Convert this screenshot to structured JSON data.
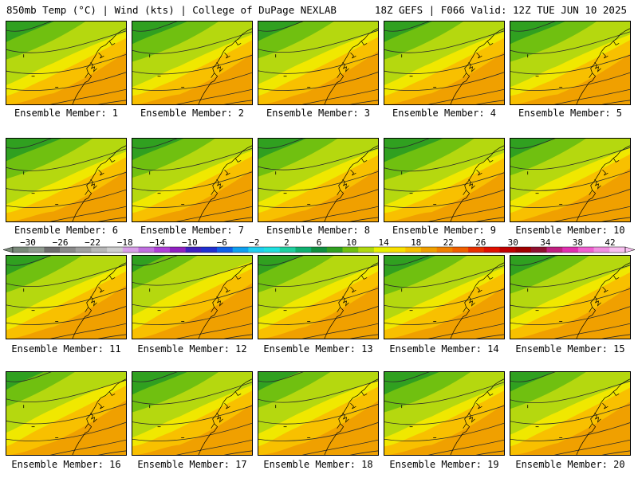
{
  "header": {
    "left": "850mb Temp (°C) | Wind (kts) | College of DuPage NEXLAB",
    "right": "18Z GEFS | F066 Valid: 12Z TUE JUN 10 2025"
  },
  "members": [
    {
      "label": "Ensemble Member: 1",
      "shade": 0.45
    },
    {
      "label": "Ensemble Member: 2",
      "shade": 0.55
    },
    {
      "label": "Ensemble Member: 3",
      "shade": 0.4
    },
    {
      "label": "Ensemble Member: 4",
      "shade": 0.45
    },
    {
      "label": "Ensemble Member: 5",
      "shade": 0.55
    },
    {
      "label": "Ensemble Member: 6",
      "shade": 0.55
    },
    {
      "label": "Ensemble Member: 7",
      "shade": 0.5
    },
    {
      "label": "Ensemble Member: 8",
      "shade": 0.45
    },
    {
      "label": "Ensemble Member: 9",
      "shade": 0.6
    },
    {
      "label": "Ensemble Member: 10",
      "shade": 0.4
    },
    {
      "label": "Ensemble Member: 11",
      "shade": 0.4
    },
    {
      "label": "Ensemble Member: 12",
      "shade": 0.25
    },
    {
      "label": "Ensemble Member: 13",
      "shade": 0.4
    },
    {
      "label": "Ensemble Member: 14",
      "shade": 0.5
    },
    {
      "label": "Ensemble Member: 15",
      "shade": 0.45
    },
    {
      "label": "Ensemble Member: 16",
      "shade": 0.3
    },
    {
      "label": "Ensemble Member: 17",
      "shade": 0.55
    },
    {
      "label": "Ensemble Member: 18",
      "shade": 0.35
    },
    {
      "label": "Ensemble Member: 19",
      "shade": 0.55
    },
    {
      "label": "Ensemble Member: 20",
      "shade": 0.4
    }
  ],
  "colorbar": {
    "ticks": [
      "−30",
      "−26",
      "−22",
      "−18",
      "−14",
      "−10",
      "−6",
      "−2",
      "2",
      "6",
      "10",
      "14",
      "18",
      "22",
      "26",
      "30",
      "34",
      "38",
      "42"
    ],
    "colors": [
      "#7a8a7a",
      "#8f9a8f",
      "#6e6e6e",
      "#8a8a8a",
      "#a0a0a0",
      "#b8b8b8",
      "#cfcfcf",
      "#d8a0e8",
      "#c070e0",
      "#b040d8",
      "#9020c0",
      "#4020c0",
      "#2030d0",
      "#1060e8",
      "#10a0f0",
      "#20d0f0",
      "#20e0e0",
      "#20d0a0",
      "#10b070",
      "#109040",
      "#30a020",
      "#70c010",
      "#b0d810",
      "#e8f000",
      "#f8e000",
      "#f8c000",
      "#f0a000",
      "#f08000",
      "#f06000",
      "#e83000",
      "#e01000",
      "#c00000",
      "#a00000",
      "#901030",
      "#c02080",
      "#e030b0",
      "#f060d0",
      "#f090e0",
      "#f8c0f0"
    ]
  }
}
